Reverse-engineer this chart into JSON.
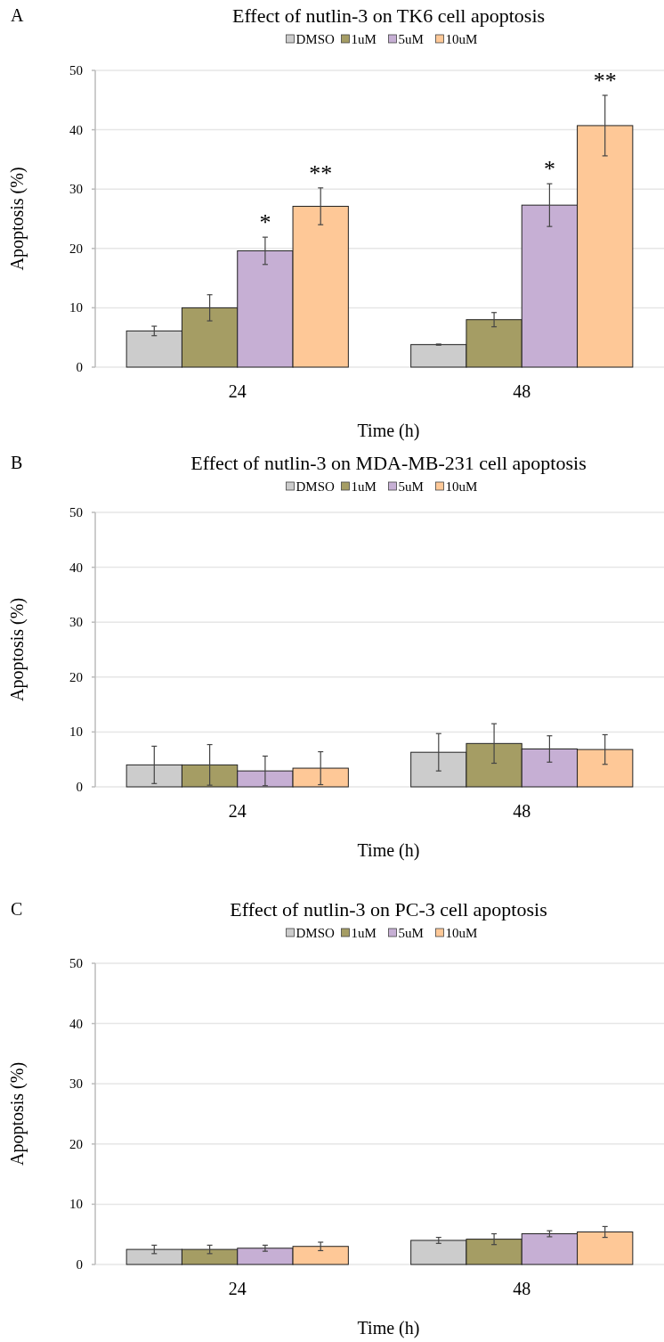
{
  "chart_data": [
    {
      "type": "bar",
      "title": "Effect of nutlin-3 on TK6 cell apoptosis",
      "xlabel": "Time (h)",
      "ylabel": "Apoptosis (%)",
      "categories": [
        "24",
        "48"
      ],
      "ylim": [
        0,
        50
      ],
      "yticks": [
        0,
        10,
        20,
        30,
        40,
        50
      ],
      "grid": "y",
      "legend": "top",
      "annotations": [
        "A"
      ],
      "series": [
        {
          "name": "DMSO",
          "color": "#cccccc",
          "values": [
            6.1,
            3.8
          ],
          "errors": [
            0.8,
            0.1
          ]
        },
        {
          "name": "1uM",
          "color": "#a59d64",
          "values": [
            10.0,
            8.0
          ],
          "errors": [
            2.2,
            1.2
          ]
        },
        {
          "name": "5uM",
          "color": "#c6afd4",
          "values": [
            19.6,
            27.3
          ],
          "errors": [
            2.3,
            3.6
          ],
          "value_labels": [
            "*",
            "*"
          ]
        },
        {
          "name": "10uM",
          "color": "#fec897",
          "values": [
            27.1,
            40.7
          ],
          "errors": [
            3.1,
            5.1
          ],
          "value_labels": [
            "**",
            "**"
          ]
        }
      ]
    },
    {
      "type": "bar",
      "title": "Effect of nutlin-3 on MDA-MB-231 cell apoptosis",
      "xlabel": "Time (h)",
      "ylabel": "Apoptosis (%)",
      "categories": [
        "24",
        "48"
      ],
      "ylim": [
        0,
        50
      ],
      "yticks": [
        0,
        10,
        20,
        30,
        40,
        50
      ],
      "grid": "y",
      "legend": "top",
      "annotations": [
        "B"
      ],
      "series": [
        {
          "name": "DMSO",
          "color": "#cccccc",
          "values": [
            4.0,
            6.3
          ],
          "errors": [
            3.4,
            3.4
          ]
        },
        {
          "name": "1uM",
          "color": "#a59d64",
          "values": [
            4.0,
            7.9
          ],
          "errors": [
            3.7,
            3.6
          ]
        },
        {
          "name": "5uM",
          "color": "#c6afd4",
          "values": [
            2.9,
            6.9
          ],
          "errors": [
            2.7,
            2.4
          ]
        },
        {
          "name": "10uM",
          "color": "#fec897",
          "values": [
            3.4,
            6.8
          ],
          "errors": [
            3.0,
            2.7
          ]
        }
      ]
    },
    {
      "type": "bar",
      "title": "Effect of nutlin-3 on PC-3 cell apoptosis",
      "xlabel": "Time (h)",
      "ylabel": "Apoptosis (%)",
      "categories": [
        "24",
        "48"
      ],
      "ylim": [
        0,
        50
      ],
      "yticks": [
        0,
        10,
        20,
        30,
        40,
        50
      ],
      "grid": "y",
      "legend": "top",
      "annotations": [
        "C"
      ],
      "series": [
        {
          "name": "DMSO",
          "color": "#cccccc",
          "values": [
            2.5,
            4.0
          ],
          "errors": [
            0.7,
            0.5
          ]
        },
        {
          "name": "1uM",
          "color": "#a59d64",
          "values": [
            2.5,
            4.2
          ],
          "errors": [
            0.7,
            0.9
          ]
        },
        {
          "name": "5uM",
          "color": "#c6afd4",
          "values": [
            2.7,
            5.1
          ],
          "errors": [
            0.5,
            0.5
          ]
        },
        {
          "name": "10uM",
          "color": "#fec897",
          "values": [
            3.0,
            5.4
          ],
          "errors": [
            0.7,
            0.9
          ]
        }
      ]
    }
  ]
}
